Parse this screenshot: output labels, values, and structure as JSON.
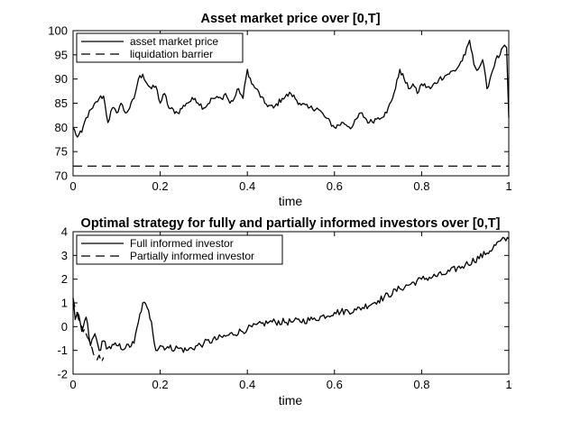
{
  "chart_data": [
    {
      "type": "line",
      "title": "Asset market price over [0,T]",
      "xlabel": "time",
      "ylabel": "",
      "xlim": [
        0,
        1
      ],
      "ylim": [
        70,
        100
      ],
      "xticks": [
        "0",
        "0.2",
        "0.4",
        "0.6",
        "0.8",
        "1"
      ],
      "yticks": [
        "70",
        "75",
        "80",
        "85",
        "90",
        "95",
        "100"
      ],
      "legend_position": "top-left",
      "series": [
        {
          "name": "asset market price",
          "style": "solid",
          "anchors_x": [
            0,
            0.01,
            0.02,
            0.03,
            0.045,
            0.06,
            0.07,
            0.08,
            0.09,
            0.1,
            0.11,
            0.12,
            0.13,
            0.14,
            0.15,
            0.16,
            0.17,
            0.18,
            0.19,
            0.2,
            0.21,
            0.22,
            0.24,
            0.26,
            0.28,
            0.3,
            0.32,
            0.34,
            0.35,
            0.36,
            0.37,
            0.38,
            0.39,
            0.4,
            0.41,
            0.42,
            0.44,
            0.46,
            0.48,
            0.5,
            0.52,
            0.54,
            0.56,
            0.58,
            0.6,
            0.62,
            0.64,
            0.66,
            0.68,
            0.7,
            0.72,
            0.74,
            0.75,
            0.76,
            0.77,
            0.78,
            0.79,
            0.8,
            0.82,
            0.84,
            0.86,
            0.88,
            0.9,
            0.91,
            0.92,
            0.93,
            0.94,
            0.95,
            0.96,
            0.97,
            0.98,
            0.99,
            0.995,
            1.0
          ],
          "anchors_y": [
            80,
            78,
            79,
            82,
            84,
            86,
            86.5,
            81,
            84,
            83,
            85,
            83,
            84,
            86,
            90,
            91,
            89,
            88,
            88.5,
            85,
            87,
            84,
            83,
            85,
            86,
            84,
            86,
            86,
            87,
            85,
            86,
            88,
            86,
            92,
            89,
            88,
            85,
            84,
            86,
            87,
            85,
            84,
            84,
            82,
            80,
            81,
            80,
            83,
            81,
            82,
            83,
            88,
            92,
            90,
            88,
            89,
            87,
            89,
            88,
            90,
            91,
            92,
            95,
            98,
            93,
            92,
            94,
            88,
            91,
            94,
            95,
            97,
            96.5,
            82
          ],
          "noise_amplitude": 0.6
        },
        {
          "name": "liquidation barrier",
          "style": "dashed",
          "x": [
            0,
            1
          ],
          "y": [
            72,
            72
          ]
        }
      ]
    },
    {
      "type": "line",
      "title": "Optimal strategy for fully and partially informed investors over [0,T]",
      "xlabel": "time",
      "ylabel": "",
      "xlim": [
        0,
        1
      ],
      "ylim": [
        -2,
        4
      ],
      "xticks": [
        "0",
        "0.2",
        "0.4",
        "0.6",
        "0.8",
        "1"
      ],
      "yticks": [
        "-2",
        "-1",
        "0",
        "1",
        "2",
        "3",
        "4"
      ],
      "legend_position": "top-left",
      "series": [
        {
          "name": "Full informed investor",
          "style": "solid",
          "anchors_x": [
            0,
            0.005,
            0.01,
            0.02,
            0.03,
            0.04,
            0.05,
            0.06,
            0.07,
            0.08,
            0.1,
            0.12,
            0.14,
            0.15,
            0.16,
            0.17,
            0.18,
            0.19,
            0.2,
            0.22,
            0.24,
            0.26,
            0.3,
            0.35,
            0.4,
            0.45,
            0.5,
            0.55,
            0.6,
            0.65,
            0.7,
            0.75,
            0.8,
            0.85,
            0.9,
            0.95,
            0.98,
            1.0
          ],
          "anchors_y": [
            1.2,
            0.3,
            0.6,
            -0.2,
            0.4,
            -0.8,
            -0.3,
            -1.0,
            -0.6,
            -0.9,
            -0.8,
            -0.9,
            -0.7,
            0.2,
            1.0,
            0.8,
            0.2,
            -1.0,
            -0.8,
            -0.9,
            -0.9,
            -1.0,
            -0.7,
            -0.4,
            -0.1,
            0.2,
            0.2,
            0.3,
            0.6,
            0.7,
            1.1,
            1.6,
            2.0,
            2.2,
            2.6,
            3.1,
            3.6,
            3.7
          ],
          "noise_amplitude": 0.15
        },
        {
          "name": "Partially informed investor",
          "style": "dashed",
          "anchors_x": [
            0.0,
            0.01,
            0.02,
            0.03,
            0.04,
            0.05,
            0.055,
            0.06,
            0.065,
            0.07
          ],
          "anchors_y": [
            1.2,
            0.5,
            0.0,
            -0.3,
            -0.8,
            -1.3,
            -1.4,
            -1.2,
            -1.5,
            -1.3
          ],
          "noise_amplitude": 0.12
        }
      ]
    }
  ]
}
